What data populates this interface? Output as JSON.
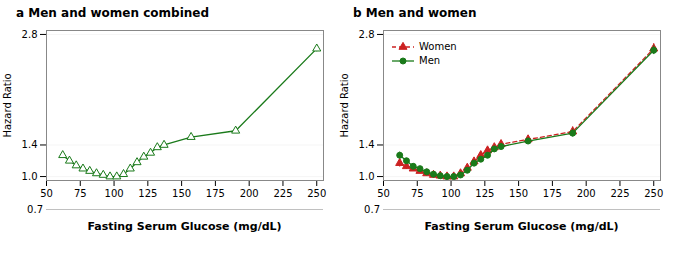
{
  "chart_data": [
    {
      "type": "line",
      "title": "a Men and women combined",
      "x_label": "Fasting Serum Glucose (mg/dL)",
      "y_label": "Hazard Ratio",
      "annotations": [
        "0.7"
      ],
      "xlim": [
        50,
        255
      ],
      "ylim": [
        0.95,
        2.85
      ],
      "xticks": [
        50,
        75,
        100,
        125,
        150,
        175,
        200,
        225,
        250
      ],
      "yticks": [
        {
          "value": 1.0,
          "label": "1.0"
        },
        1.4,
        2.8
      ],
      "grid": true,
      "x": [
        62,
        67,
        72,
        77,
        82,
        87,
        92,
        97,
        102,
        107,
        112,
        117,
        122,
        127,
        132,
        137,
        157,
        190,
        250
      ],
      "series": [
        {
          "color": "#1a7a1a",
          "marker": "triangle_open",
          "line_style": "solid",
          "values": [
            1.27,
            1.2,
            1.14,
            1.1,
            1.07,
            1.04,
            1.02,
            1.0,
            1.0,
            1.03,
            1.1,
            1.18,
            1.25,
            1.3,
            1.37,
            1.4,
            1.5,
            1.58,
            2.62
          ],
          "yerr_lo": [
            0.03,
            0.025,
            0.022,
            0.02,
            0.018,
            0.016,
            0.015,
            0.014,
            0.014,
            0.016,
            0.018,
            0.02,
            0.022,
            0.024,
            0.025,
            0.026,
            0.03,
            0.035,
            0.04
          ],
          "yerr_hi": [
            0.03,
            0.025,
            0.022,
            0.02,
            0.018,
            0.016,
            0.015,
            0.014,
            0.014,
            0.016,
            0.018,
            0.02,
            0.022,
            0.024,
            0.025,
            0.026,
            0.03,
            0.035,
            0.04
          ]
        }
      ]
    },
    {
      "type": "line",
      "title": "b Men and women",
      "x_label": "Fasting Serum Glucose (mg/dL)",
      "y_label": "Hazard Ratio",
      "annotations": [
        "0.7"
      ],
      "xlim": [
        50,
        255
      ],
      "ylim": [
        0.95,
        2.85
      ],
      "xticks": [
        50,
        75,
        100,
        125,
        150,
        175,
        200,
        225,
        250
      ],
      "yticks": [
        {
          "value": 1.0,
          "label": "1.0"
        },
        1.4,
        2.8
      ],
      "grid": true,
      "legend": "upper left",
      "x": [
        62,
        67,
        72,
        77,
        82,
        87,
        92,
        97,
        102,
        107,
        112,
        117,
        122,
        127,
        132,
        137,
        157,
        190,
        250
      ],
      "series": [
        {
          "name": "Women",
          "color": "#cc2222",
          "marker": "triangle",
          "line_style": "dashed",
          "values": [
            1.17,
            1.13,
            1.1,
            1.07,
            1.04,
            1.02,
            1.01,
            1.0,
            1.0,
            1.04,
            1.11,
            1.19,
            1.27,
            1.33,
            1.37,
            1.41,
            1.47,
            1.57,
            2.62
          ],
          "yerr_lo": [
            0.05,
            0.04,
            0.035,
            0.032,
            0.028,
            0.025,
            0.022,
            0.02,
            0.02,
            0.023,
            0.026,
            0.03,
            0.033,
            0.036,
            0.038,
            0.04,
            0.05,
            0.06,
            0.065
          ],
          "yerr_hi": [
            0.05,
            0.04,
            0.035,
            0.032,
            0.028,
            0.025,
            0.022,
            0.02,
            0.02,
            0.023,
            0.026,
            0.03,
            0.033,
            0.036,
            0.038,
            0.04,
            0.05,
            0.06,
            0.065
          ]
        },
        {
          "name": "Men",
          "color": "#1a7a1a",
          "marker": "circle",
          "line_style": "solid",
          "values": [
            1.27,
            1.2,
            1.13,
            1.1,
            1.06,
            1.03,
            1.01,
            1.0,
            1.0,
            1.02,
            1.08,
            1.17,
            1.22,
            1.27,
            1.35,
            1.38,
            1.45,
            1.55,
            2.6
          ],
          "yerr_lo": [
            0.04,
            0.03,
            0.027,
            0.024,
            0.022,
            0.02,
            0.018,
            0.016,
            0.016,
            0.018,
            0.02,
            0.023,
            0.025,
            0.028,
            0.03,
            0.032,
            0.038,
            0.048,
            0.055
          ],
          "yerr_hi": [
            0.04,
            0.03,
            0.027,
            0.024,
            0.022,
            0.02,
            0.018,
            0.016,
            0.016,
            0.018,
            0.02,
            0.023,
            0.025,
            0.028,
            0.03,
            0.032,
            0.038,
            0.048,
            0.055
          ]
        }
      ]
    }
  ]
}
